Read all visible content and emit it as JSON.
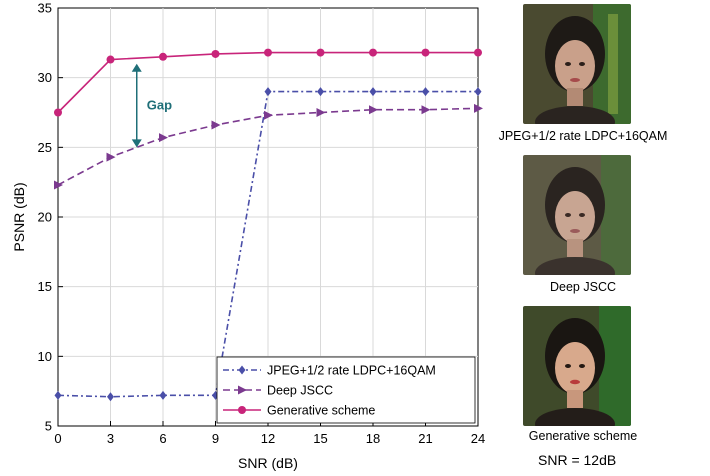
{
  "chart_data": {
    "type": "line",
    "xlabel": "SNR (dB)",
    "ylabel": "PSNR (dB)",
    "xlim": [
      0,
      24
    ],
    "ylim": [
      5,
      35
    ],
    "xticks": [
      0,
      3,
      6,
      9,
      12,
      15,
      18,
      21,
      24
    ],
    "yticks": [
      5,
      10,
      15,
      20,
      25,
      30,
      35
    ],
    "grid": true,
    "legend_position": "bottom-right",
    "x": [
      0,
      3,
      6,
      9,
      12,
      15,
      18,
      21,
      24
    ],
    "series": [
      {
        "name": "JPEG+1/2 rate LDPC+16QAM",
        "color": "#4a4fa8",
        "style": "dash-dot",
        "marker": "diamond",
        "values": [
          7.2,
          7.1,
          7.2,
          7.2,
          29.0,
          29.0,
          29.0,
          29.0,
          29.0
        ]
      },
      {
        "name": "Deep JSCC",
        "color": "#7b3a8f",
        "style": "dashed",
        "marker": "triangle-right",
        "values": [
          22.3,
          24.3,
          25.7,
          26.6,
          27.3,
          27.5,
          27.7,
          27.7,
          27.8
        ]
      },
      {
        "name": "Generative scheme",
        "color": "#c8247a",
        "style": "solid",
        "marker": "circle",
        "values": [
          27.5,
          31.3,
          31.5,
          31.7,
          31.8,
          31.8,
          31.8,
          31.8,
          31.8
        ]
      }
    ],
    "annotation": {
      "text": "Gap",
      "x": 4.5,
      "y_top": 31.0,
      "y_bottom": 25.0,
      "color": "#1f6f78"
    }
  },
  "side_panel": {
    "captions": [
      "JPEG+1/2 rate LDPC+16QAM",
      "Deep JSCC",
      "Generative scheme"
    ],
    "snr_note": "SNR = 12dB"
  }
}
